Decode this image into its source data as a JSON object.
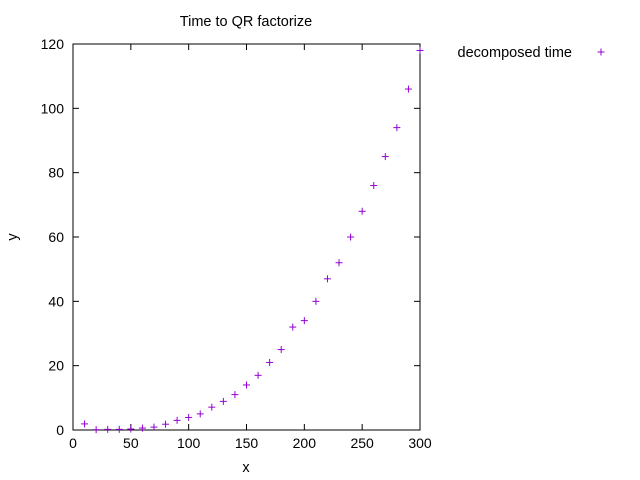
{
  "chart_data": {
    "type": "scatter",
    "title": "Time to QR factorize",
    "xlabel": "x",
    "ylabel": "y",
    "xlim": [
      0,
      300
    ],
    "ylim": [
      0,
      120
    ],
    "xticks": [
      0,
      50,
      100,
      150,
      200,
      250,
      300
    ],
    "yticks": [
      0,
      20,
      40,
      60,
      80,
      100,
      120
    ],
    "grid": false,
    "legend_position": "outside-top-right",
    "marker": "plus",
    "series": [
      {
        "name": "decomposed time",
        "color": "#9400D3",
        "x": [
          10,
          20,
          30,
          40,
          50,
          60,
          70,
          80,
          90,
          100,
          110,
          120,
          130,
          140,
          150,
          160,
          170,
          180,
          190,
          200,
          210,
          220,
          230,
          240,
          250,
          260,
          270,
          280,
          290,
          300
        ],
        "y": [
          1.9,
          0.1,
          0.2,
          0.2,
          0.3,
          0.6,
          0.9,
          1.8,
          3,
          3.9,
          5,
          7.1,
          8.9,
          11,
          14,
          17,
          21,
          25,
          32,
          34,
          40,
          47,
          52,
          60,
          68,
          76,
          85,
          94,
          106,
          118
        ]
      }
    ]
  }
}
